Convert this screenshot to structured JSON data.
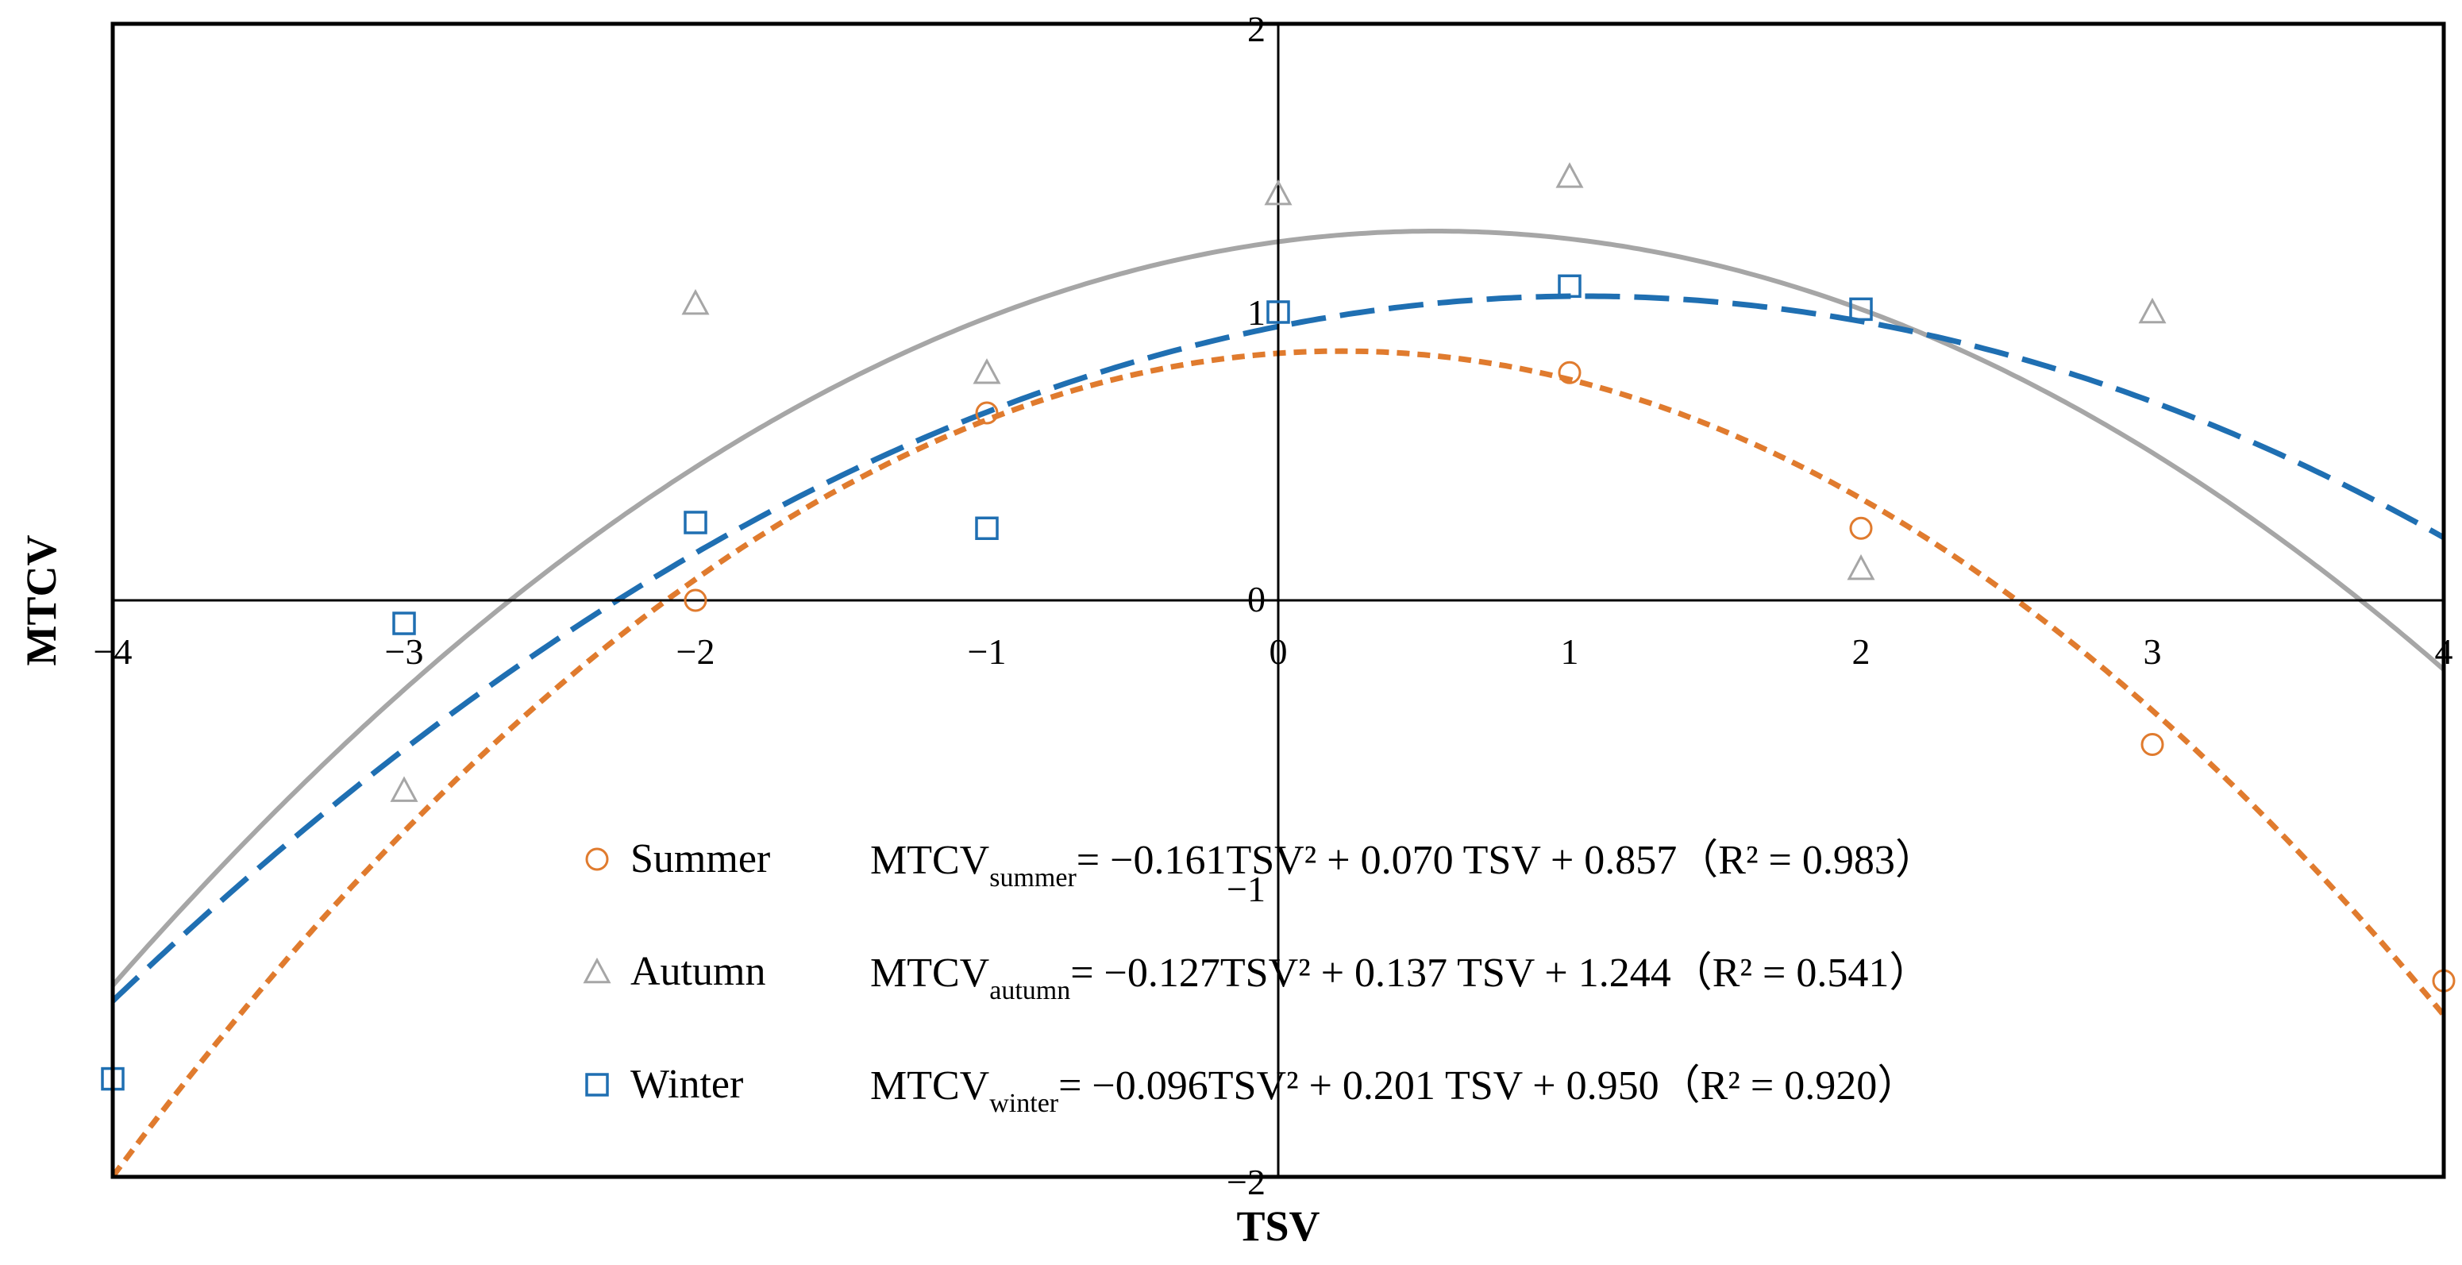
{
  "chart_data": {
    "type": "scatter",
    "title": "",
    "xlabel": "TSV",
    "ylabel": "MTCV",
    "xlim": [
      -4,
      4
    ],
    "ylim": [
      -2,
      2
    ],
    "xticks": [
      "−4",
      "−3",
      "−2",
      "−1",
      "0",
      "1",
      "2",
      "3",
      "4"
    ],
    "yticks": [
      "−2",
      "−1",
      "0",
      "1",
      "2"
    ],
    "grid": false,
    "series": [
      {
        "name": "Summer",
        "key": "summer",
        "marker": "circle",
        "color": "#E07B2E",
        "line_style": "short-dash",
        "points": [
          [
            -2,
            0.0
          ],
          [
            -1,
            0.65
          ],
          [
            1,
            0.79
          ],
          [
            2,
            0.25
          ],
          [
            3,
            -0.5
          ],
          [
            4,
            -1.32
          ]
        ],
        "fit": {
          "a": -0.161,
          "b": 0.07,
          "c": 0.857,
          "r2": 0.983
        },
        "eq_lhs": "MTCV",
        "eq_sub": "summer",
        "eq_rhs": "= −0.161TSV² + 0.070 TSV + 0.857（R² = 0.983）"
      },
      {
        "name": "Autumn",
        "key": "autumn",
        "marker": "triangle",
        "color": "#A6A6A6",
        "line_style": "solid",
        "points": [
          [
            -3,
            -0.66
          ],
          [
            -2,
            1.03
          ],
          [
            -1,
            0.79
          ],
          [
            0,
            1.41
          ],
          [
            1,
            1.47
          ],
          [
            2,
            0.11
          ],
          [
            3,
            1.0
          ]
        ],
        "fit": {
          "a": -0.127,
          "b": 0.137,
          "c": 1.244,
          "r2": 0.541
        },
        "eq_lhs": "MTCV",
        "eq_sub": "autumn",
        "eq_rhs": "= −0.127TSV² + 0.137 TSV + 1.244（R² = 0.541）"
      },
      {
        "name": "Winter",
        "key": "winter",
        "marker": "square",
        "color": "#1F6FB2",
        "line_style": "long-dash",
        "points": [
          [
            -4,
            -1.66
          ],
          [
            -3,
            -0.08
          ],
          [
            -2,
            0.27
          ],
          [
            -1,
            0.25
          ],
          [
            0,
            1.0
          ],
          [
            1,
            1.09
          ],
          [
            2,
            1.01
          ]
        ],
        "fit": {
          "a": -0.096,
          "b": 0.201,
          "c": 0.95,
          "r2": 0.92
        },
        "eq_lhs": "MTCV",
        "eq_sub": "winter",
        "eq_rhs": "= −0.096TSV² + 0.201 TSV + 0.950（R² = 0.920）"
      }
    ]
  }
}
